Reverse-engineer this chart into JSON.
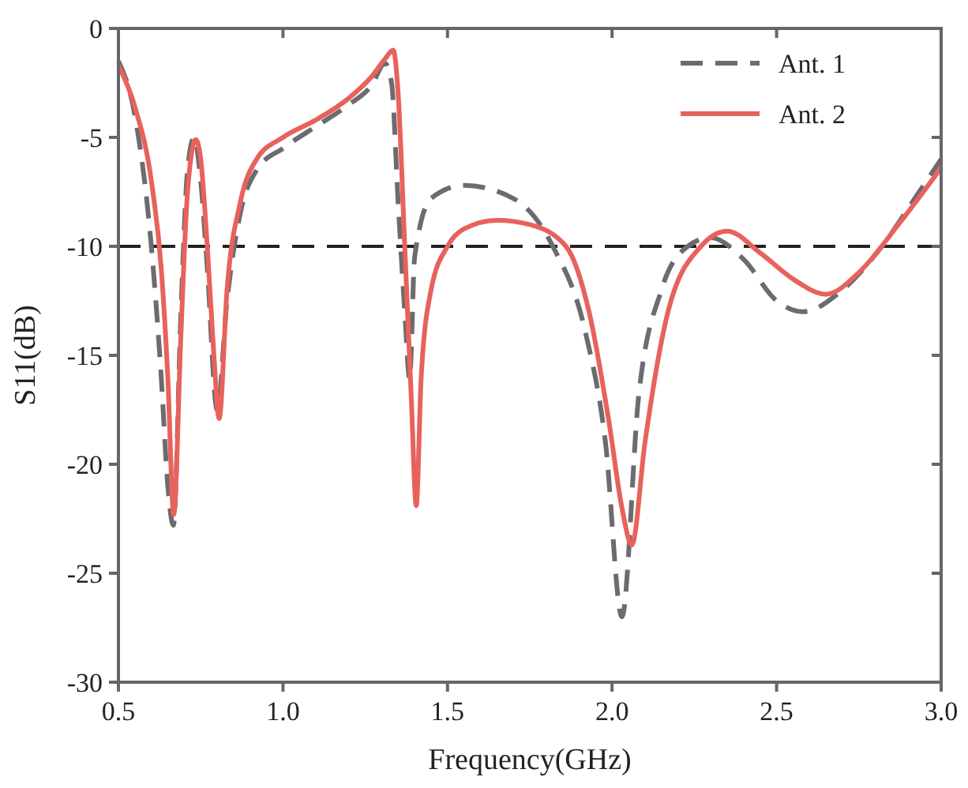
{
  "chart_data": {
    "type": "line",
    "xlabel": "Frequency(GHz)",
    "ylabel": "S11(dB)",
    "xlim": [
      0.5,
      3.0
    ],
    "xticks": [
      {
        "value": 0.5,
        "label": "0.5"
      },
      {
        "value": 1.0,
        "label": "1.0"
      },
      {
        "value": 1.5,
        "label": "1.5"
      },
      {
        "value": 2.0,
        "label": "2.0"
      },
      {
        "value": 2.5,
        "label": "2.5"
      },
      {
        "value": 3.0,
        "label": "3.0"
      }
    ],
    "ylim": [
      -30,
      0
    ],
    "yticks": [
      -30,
      -25,
      -20,
      -15,
      -10,
      -5,
      0
    ],
    "grid": false,
    "legend": "top right",
    "ref_lines": [
      {
        "axis": "y",
        "value": -10,
        "color": "#222222",
        "line_style": "dashed"
      }
    ],
    "series": [
      {
        "name": "Ant. 1",
        "color": "#6b6b70",
        "line_style": "dashed",
        "x": [
          0.5,
          0.55,
          0.6,
          0.63,
          0.65,
          0.667,
          0.69,
          0.71,
          0.73,
          0.75,
          0.77,
          0.8,
          0.83,
          0.87,
          0.92,
          1.0,
          1.1,
          1.2,
          1.27,
          1.31,
          1.33,
          1.35,
          1.37,
          1.385,
          1.4,
          1.45,
          1.55,
          1.7,
          1.82,
          1.92,
          1.98,
          2.03,
          2.08,
          2.15,
          2.23,
          2.3,
          2.4,
          2.5,
          2.58,
          2.7,
          2.82,
          2.92,
          3.0
        ],
        "values": [
          -1.5,
          -4,
          -10,
          -16,
          -21,
          -22.8,
          -13,
          -6.5,
          -5,
          -7,
          -11,
          -17.5,
          -12.5,
          -8.5,
          -6.5,
          -5.5,
          -4.5,
          -3.5,
          -2.6,
          -1.6,
          -2.5,
          -8,
          -13,
          -16.1,
          -10.5,
          -7.8,
          -7.2,
          -7.8,
          -10,
          -14,
          -19,
          -27,
          -17,
          -12,
          -10,
          -9.6,
          -10.6,
          -12.5,
          -13,
          -12,
          -10,
          -7.8,
          -6
        ]
      },
      {
        "name": "Ant. 2",
        "color": "#e8625c",
        "line_style": "solid",
        "x": [
          0.5,
          0.55,
          0.6,
          0.63,
          0.65,
          0.668,
          0.69,
          0.71,
          0.735,
          0.75,
          0.77,
          0.79,
          0.806,
          0.83,
          0.87,
          0.92,
          1.0,
          1.1,
          1.2,
          1.27,
          1.31,
          1.335,
          1.35,
          1.37,
          1.39,
          1.405,
          1.42,
          1.45,
          1.5,
          1.55,
          1.65,
          1.75,
          1.86,
          1.93,
          1.99,
          2.03,
          2.06,
          2.1,
          2.17,
          2.27,
          2.35,
          2.45,
          2.55,
          2.65,
          2.75,
          2.87,
          3.0
        ],
        "values": [
          -1.7,
          -3.6,
          -7,
          -11,
          -16,
          -22.3,
          -14,
          -7.5,
          -5.1,
          -6,
          -10,
          -15,
          -17.9,
          -12,
          -8,
          -6,
          -5,
          -4.2,
          -3.2,
          -2.2,
          -1.4,
          -1,
          -3,
          -10,
          -17,
          -21.9,
          -16,
          -12,
          -10,
          -9.2,
          -8.8,
          -9,
          -10,
          -13,
          -18,
          -22,
          -23.7,
          -19,
          -13,
          -10,
          -9.3,
          -10.3,
          -11.5,
          -12.2,
          -11.2,
          -9,
          -6.4
        ]
      }
    ]
  }
}
